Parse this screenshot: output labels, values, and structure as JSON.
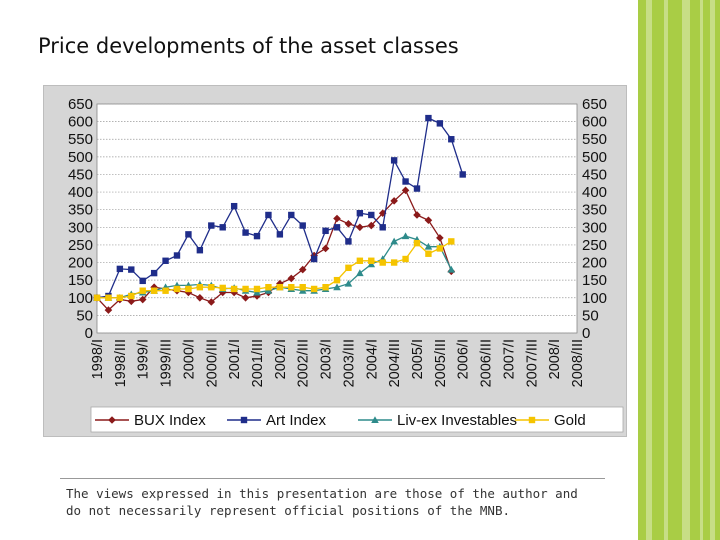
{
  "slide": {
    "title": "Price developments of the asset classes",
    "footnote_line1": "The views expressed in this presentation are those of the author and",
    "footnote_line2": "do not necessarily represent official positions of the MNB.",
    "accent_color": "#a9cd45"
  },
  "chart_data": {
    "type": "line",
    "title": "",
    "xlabel": "",
    "ylabel": "",
    "ylim": [
      0,
      650
    ],
    "yticks": [
      0,
      50,
      100,
      150,
      200,
      250,
      300,
      350,
      400,
      450,
      500,
      550,
      600,
      650
    ],
    "x": [
      "1998/I",
      "1998/II",
      "1998/III",
      "1998/IV",
      "1999/I",
      "1999/II",
      "1999/III",
      "1999/IV",
      "2000/I",
      "2000/II",
      "2000/III",
      "2000/IV",
      "2001/I",
      "2001/II",
      "2001/III",
      "2001/IV",
      "2002/I",
      "2002/II",
      "2002/III",
      "2002/IV",
      "2003/I",
      "2003/II",
      "2003/III",
      "2003/IV",
      "2004/I",
      "2004/II",
      "2004/III",
      "2004/IV",
      "2005/I",
      "2005/II",
      "2005/III",
      "2005/IV",
      "2006/I",
      "2006/II",
      "2006/III",
      "2006/IV",
      "2007/I",
      "2007/II",
      "2007/III",
      "2007/IV",
      "2008/I",
      "2008/II",
      "2008/III"
    ],
    "x_tick_labels": [
      "1998/I",
      "1998/III",
      "1999/I",
      "1999/III",
      "2000/I",
      "2000/III",
      "2001/I",
      "2001/III",
      "2002/I",
      "2002/III",
      "2003/I",
      "2003/III",
      "2004/I",
      "2004/III",
      "2005/I",
      "2005/III",
      "2006/I",
      "2006/III",
      "2007/I",
      "2007/III",
      "2008/I",
      "2008/III"
    ],
    "grid": true,
    "legend_position": "bottom",
    "series": [
      {
        "name": "BUX Index",
        "color": "#8b1a1a",
        "marker": "diamond",
        "values": [
          100,
          65,
          95,
          90,
          95,
          130,
          125,
          120,
          115,
          100,
          88,
          115,
          115,
          100,
          105,
          115,
          140,
          155,
          180,
          220,
          240,
          325,
          310,
          300,
          305,
          340,
          375,
          405,
          335,
          320,
          270,
          175,
          null,
          null,
          null,
          null,
          null,
          null,
          null,
          null,
          null,
          null,
          null
        ]
      },
      {
        "name": "Art Index",
        "color": "#1f2d8a",
        "marker": "square",
        "values": [
          100,
          105,
          182,
          180,
          148,
          170,
          205,
          220,
          280,
          235,
          305,
          300,
          360,
          285,
          275,
          335,
          280,
          335,
          305,
          210,
          290,
          300,
          260,
          340,
          335,
          300,
          490,
          430,
          410,
          610,
          595,
          550,
          450,
          null,
          null,
          null,
          null,
          null,
          null,
          null,
          null,
          null,
          null
        ]
      },
      {
        "name": "Liv-ex Investables",
        "color": "#2e8b8b",
        "marker": "triangle",
        "values": [
          100,
          100,
          100,
          110,
          115,
          120,
          130,
          135,
          135,
          138,
          135,
          125,
          128,
          120,
          115,
          120,
          130,
          125,
          120,
          120,
          125,
          130,
          140,
          170,
          195,
          210,
          260,
          275,
          265,
          245,
          245,
          180,
          null,
          null,
          null,
          null,
          null,
          null,
          null,
          null,
          null,
          null,
          null
        ]
      },
      {
        "name": "Gold",
        "color": "#f5c400",
        "marker": "square",
        "values": [
          100,
          100,
          100,
          105,
          120,
          120,
          120,
          125,
          125,
          130,
          130,
          128,
          125,
          125,
          125,
          130,
          130,
          130,
          130,
          125,
          130,
          150,
          185,
          205,
          205,
          200,
          200,
          210,
          255,
          225,
          240,
          260,
          null,
          null,
          null,
          null,
          null,
          null,
          null,
          null,
          null,
          null,
          null
        ]
      }
    ]
  }
}
